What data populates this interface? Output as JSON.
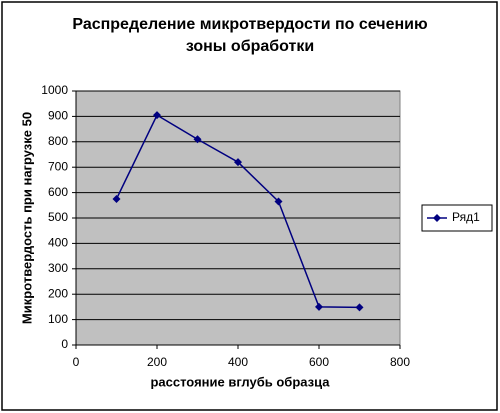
{
  "chart_data": {
    "type": "line",
    "title": "Распределение микротвердости по сечению зоны обработки",
    "x_label": "расстояние вглубь образца",
    "y_label": "Микротвердость при нагрузке 50",
    "x": [
      100,
      200,
      300,
      400,
      500,
      600,
      700
    ],
    "series": [
      {
        "name": "Ряд1",
        "color": "#000080",
        "values": [
          575,
          905,
          810,
          720,
          565,
          150,
          148
        ]
      }
    ],
    "xlim": [
      0,
      800
    ],
    "xticks": [
      0,
      200,
      400,
      600,
      800
    ],
    "ylim": [
      0,
      1000
    ],
    "yticks": [
      0,
      100,
      200,
      300,
      400,
      500,
      600,
      700,
      800,
      900,
      1000
    ],
    "grid": true,
    "plot_background": "#c0c0c0",
    "legend": "right"
  }
}
